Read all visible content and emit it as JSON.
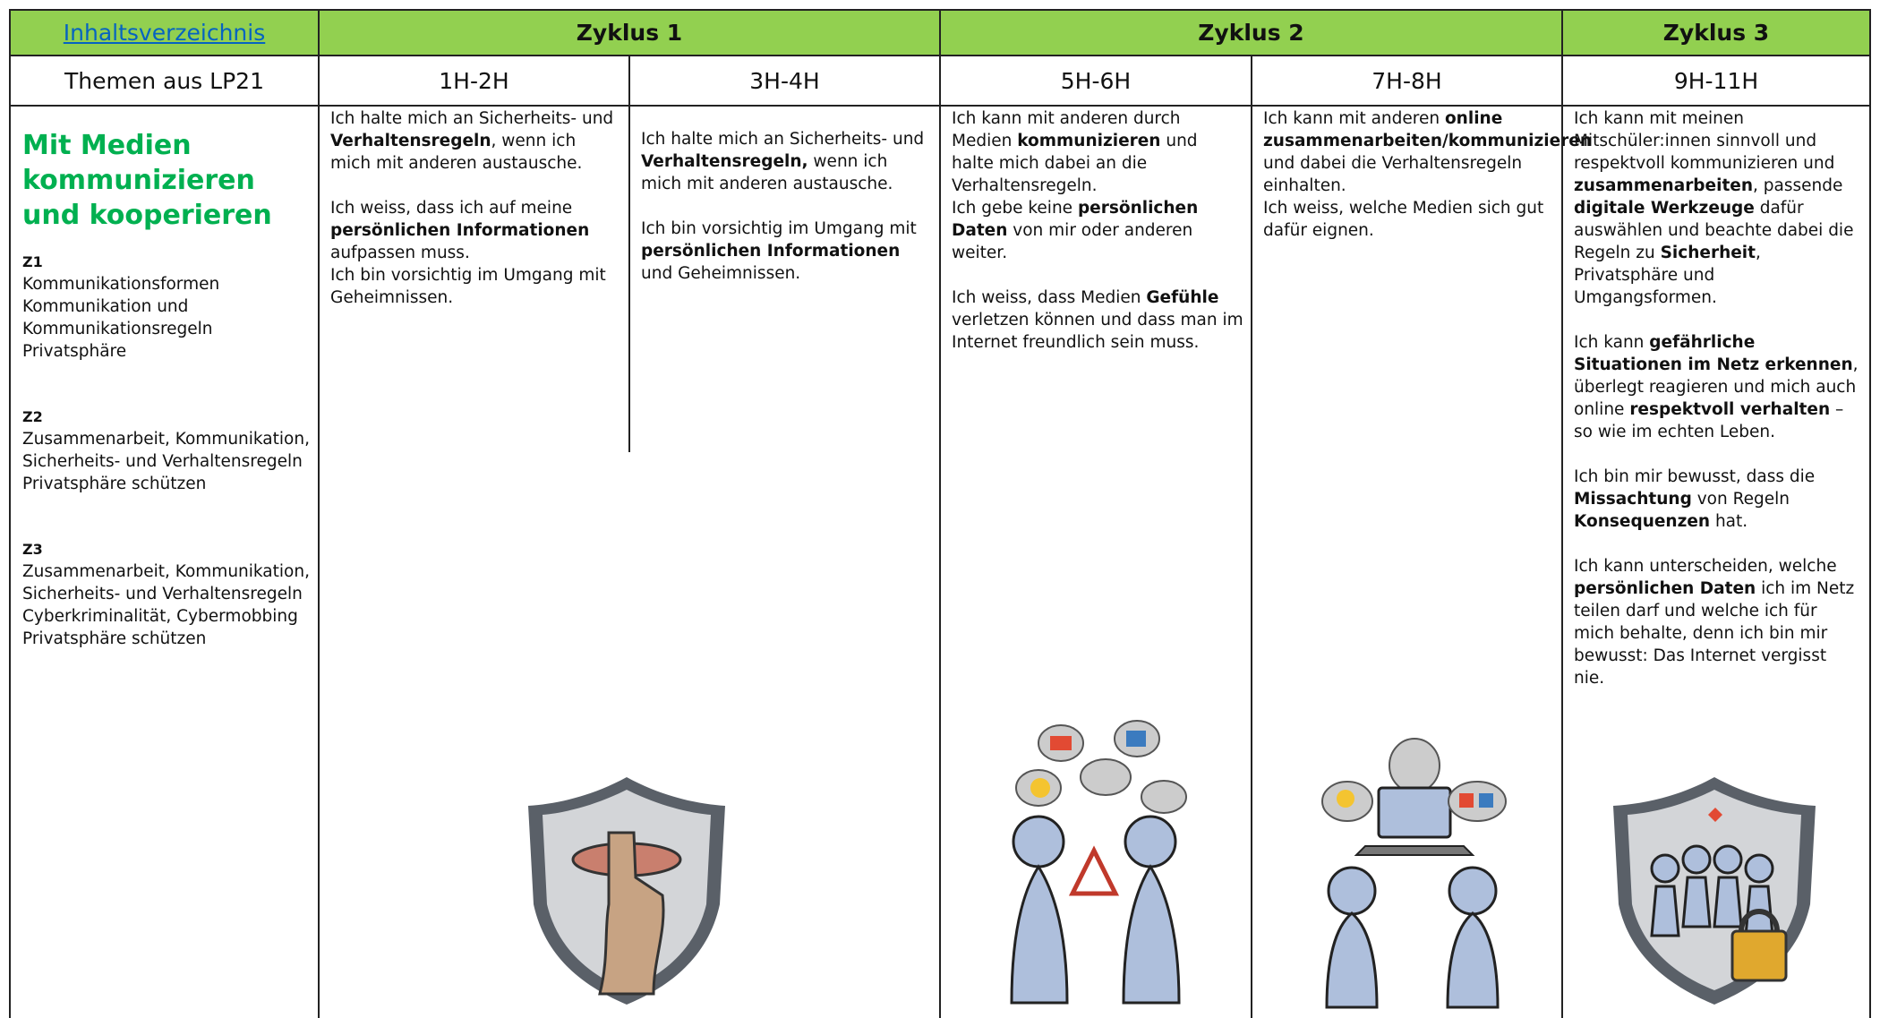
{
  "header": {
    "link": "Inhaltsverzeichnis",
    "cycles": [
      "Zyklus 1",
      "Zyklus 2",
      "Zyklus 3"
    ]
  },
  "subheader": {
    "label": "Themen aus LP21",
    "grades": [
      "1H-2H",
      "3H-4H",
      "5H-6H",
      "7H-8H",
      "9H-11H"
    ]
  },
  "topic": {
    "title": "Mit Medien kommunizieren und kooperieren",
    "groups": [
      {
        "label": "Z1",
        "items": [
          "Kommunikationsformen",
          "Kommunikation und Kommunikationsregeln",
          "Privatsphäre"
        ]
      },
      {
        "label": "Z2",
        "items": [
          "Zusammenarbeit, Kommunikation, Sicherheits- und Verhaltensregeln",
          "Privatsphäre schützen"
        ]
      },
      {
        "label": "Z3",
        "items": [
          "Zusammenarbeit, Kommunikation, Sicherheits- und Verhaltensregeln",
          "Cyberkriminalität, Cybermobbing",
          "Privatsphäre schützen"
        ]
      }
    ]
  },
  "cells": [
    {
      "blocks": [
        [
          [
            {
              "text": "Ich halte mich an Sicherheits- und ",
              "bold": false
            },
            {
              "text": "Verhaltensregeln",
              "bold": true
            },
            {
              "text": ", wenn ich mich mit anderen austausche.",
              "bold": false
            }
          ]
        ],
        [
          [
            {
              "text": "Ich weiss, dass ich auf meine ",
              "bold": false
            },
            {
              "text": "persönlichen Informationen",
              "bold": true
            },
            {
              "text": " aufpassen muss.",
              "bold": false
            }
          ],
          [
            {
              "text": "Ich bin vorsichtig im Umgang mit Geheimnissen.",
              "bold": false
            }
          ]
        ]
      ]
    },
    {
      "blocks": [
        [
          [
            {
              "text": "Ich halte mich an Sicherheits- und ",
              "bold": false
            },
            {
              "text": "Verhaltensregeln,",
              "bold": true
            },
            {
              "text": " wenn ich mich mit anderen austausche.",
              "bold": false
            }
          ]
        ],
        [
          [
            {
              "text": "Ich bin vorsichtig im Umgang mit ",
              "bold": false
            },
            {
              "text": "persönlichen Informationen",
              "bold": true
            },
            {
              "text": " und Geheimnissen.",
              "bold": false
            }
          ]
        ]
      ]
    },
    {
      "blocks": [
        [
          [
            {
              "text": "Ich kann mit anderen durch Medien ",
              "bold": false
            },
            {
              "text": "kommunizieren",
              "bold": true
            },
            {
              "text": " und halte mich dabei an die Verhaltensregeln.",
              "bold": false
            }
          ],
          [
            {
              "text": "Ich gebe keine ",
              "bold": false
            },
            {
              "text": "persönlichen Daten",
              "bold": true
            },
            {
              "text": " von mir oder anderen weiter.",
              "bold": false
            }
          ]
        ],
        [
          [
            {
              "text": "Ich weiss, dass Medien ",
              "bold": false
            },
            {
              "text": "Gefühle",
              "bold": true
            },
            {
              "text": " verletzen können und dass man im Internet freundlich sein muss.",
              "bold": false
            }
          ]
        ]
      ]
    },
    {
      "blocks": [
        [
          [
            {
              "text": "Ich kann mit anderen ",
              "bold": false
            },
            {
              "text": "online zusammenarbeiten/kommunizieren",
              "bold": true
            },
            {
              "text": " und dabei die Verhaltensregeln einhalten.",
              "bold": false
            }
          ],
          [
            {
              "text": "Ich weiss, welche Medien sich gut dafür eignen.",
              "bold": false
            }
          ]
        ]
      ]
    },
    {
      "blocks": [
        [
          [
            {
              "text": "Ich kann mit meinen Mitschüler:innen sinnvoll und respektvoll kommunizieren und ",
              "bold": false
            },
            {
              "text": "zusammenarbeiten",
              "bold": true
            },
            {
              "text": ", passende ",
              "bold": false
            },
            {
              "text": "digitale Werkzeuge",
              "bold": true
            },
            {
              "text": " dafür auswählen und beachte dabei die Regeln zu ",
              "bold": false
            },
            {
              "text": "Sicherheit",
              "bold": true
            },
            {
              "text": ", Privatsphäre und Umgangsformen.",
              "bold": false
            }
          ]
        ],
        [
          [
            {
              "text": "Ich kann ",
              "bold": false
            },
            {
              "text": "gefährliche Situationen im Netz erkennen",
              "bold": true
            },
            {
              "text": ", überlegt reagieren und mich auch online ",
              "bold": false
            },
            {
              "text": "respektvoll verhalten",
              "bold": true
            },
            {
              "text": " – so wie im echten Leben.",
              "bold": false
            }
          ]
        ],
        [
          [
            {
              "text": "Ich bin mir bewusst, dass die ",
              "bold": false
            },
            {
              "text": "Missachtung",
              "bold": true
            },
            {
              "text": " von Regeln ",
              "bold": false
            },
            {
              "text": "Konsequenzen",
              "bold": true
            },
            {
              "text": " hat.",
              "bold": false
            }
          ]
        ],
        [
          [
            {
              "text": "Ich kann unterscheiden, welche ",
              "bold": false
            },
            {
              "text": "persönlichen Daten",
              "bold": true
            },
            {
              "text": " ich im Netz teilen darf und welche ich für mich behalte, denn ich bin mir bewusst: Das Internet vergisst nie.",
              "bold": false
            }
          ]
        ]
      ]
    }
  ]
}
